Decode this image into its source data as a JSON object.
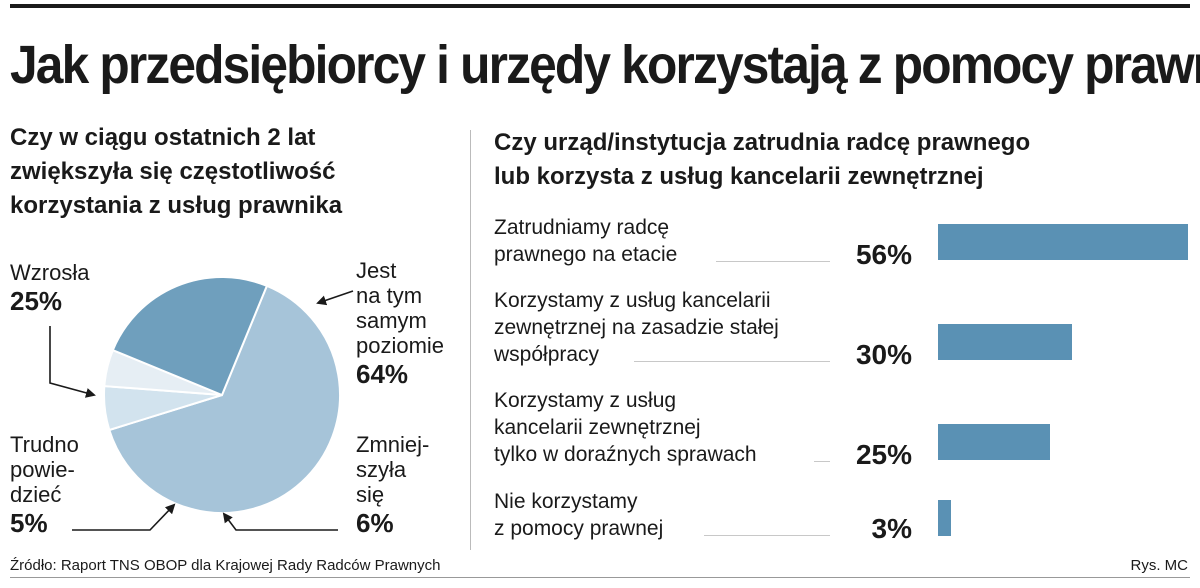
{
  "title": "Jak przedsiębiorcy i urzędy korzystają z pomocy prawnej",
  "left_chart": {
    "subtitle_lines": [
      "Czy w ciągu ostatnich 2 lat",
      "zwiększyła się częstotliwość",
      "korzystania z usług prawnika"
    ]
  },
  "right_chart": {
    "subtitle_lines": [
      "Czy urząd/instytucja zatrudnia radcę prawnego",
      "lub korzysta z usług kancelarii zewnętrznej"
    ]
  },
  "chart_data": [
    {
      "type": "pie",
      "slices": [
        {
          "label_lines": [
            "Jest",
            "na tym",
            "samym",
            "poziomie"
          ],
          "value": 64,
          "value_label": "64%",
          "color": "#a6c4d9"
        },
        {
          "label_lines": [
            "Zmniej-",
            "szyła",
            "się"
          ],
          "value": 6,
          "value_label": "6%",
          "color": "#d2e3ee"
        },
        {
          "label_lines": [
            "Trudno",
            "powie-",
            "dzieć"
          ],
          "value": 5,
          "value_label": "5%",
          "color": "#e6eef4"
        },
        {
          "label_lines": [
            "Wzrosła"
          ],
          "value": 25,
          "value_label": "25%",
          "color": "#6f9fbd"
        }
      ]
    },
    {
      "type": "bar",
      "orientation": "horizontal",
      "categories": [
        [
          "Zatrudniamy radcę",
          "prawnego na etacie"
        ],
        [
          "Korzystamy z usług kancelarii",
          "zewnętrznej na zasadzie stałej",
          "współpracy"
        ],
        [
          "Korzystamy z usług",
          "kancelarii zewnętrznej",
          "tylko w doraźnych sprawach"
        ],
        [
          "Nie korzystamy",
          "z pomocy prawnej"
        ]
      ],
      "values": [
        56,
        30,
        25,
        3
      ],
      "value_labels": [
        "56%",
        "30%",
        "25%",
        "3%"
      ],
      "xlim": [
        0,
        56
      ],
      "color": "#5a91b4"
    }
  ],
  "source": "Źródło: Raport TNS OBOP dla Krajowej Rady Radców Prawnych",
  "credit": "Rys. MC"
}
